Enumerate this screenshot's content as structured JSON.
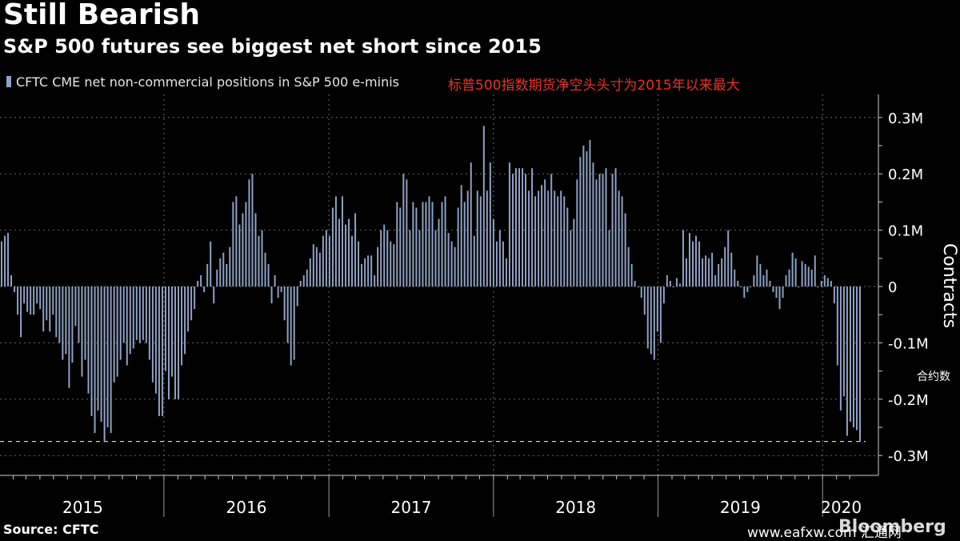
{
  "header": {
    "title": "Still Bearish",
    "subtitle": "S&P 500 futures see biggest net short since 2015"
  },
  "annotation_cn": "标普500指数期货净空头头寸为2015年以来最大",
  "footer": {
    "source": "Source: CFTC",
    "watermark": "www.eafxw.com 汇通网",
    "brand": "Bloomberg"
  },
  "colors": {
    "background": "#000000",
    "bars": "#8fa1c4",
    "grid": "#6b6b6b",
    "reference_line": "#e8d27a",
    "annotation": "#e8322b"
  },
  "chart_data": {
    "type": "bar",
    "legend": "CFTC CME net non-commercial positions in S&P 500 e-minis",
    "ylabel": "Contracts",
    "ylabel_cn": "合约数",
    "ylim": [
      -0.33,
      0.34
    ],
    "yticks": [
      0.3,
      0.2,
      0.1,
      0,
      -0.1,
      -0.2,
      -0.3
    ],
    "ytick_labels": [
      "0.3M",
      "0.2M",
      "0.1M",
      "0",
      "-0.1M",
      "-0.2M",
      "-0.3M"
    ],
    "year_labels": [
      "2015",
      "2016",
      "2017",
      "2018",
      "2019",
      "2020"
    ],
    "grid": true,
    "legend_position": "top-left",
    "reference_line": -0.275,
    "x_start": "2015-01-06",
    "x_end": "2020-03-24",
    "frequency": "weekly",
    "values": [
      0.08,
      0.09,
      0.095,
      0.02,
      -0.01,
      -0.05,
      -0.09,
      -0.03,
      -0.045,
      -0.05,
      -0.05,
      -0.03,
      -0.04,
      -0.08,
      -0.06,
      -0.08,
      -0.05,
      -0.09,
      -0.1,
      -0.13,
      -0.12,
      -0.18,
      -0.135,
      -0.07,
      -0.1,
      -0.16,
      -0.13,
      -0.19,
      -0.23,
      -0.26,
      -0.22,
      -0.24,
      -0.275,
      -0.25,
      -0.26,
      -0.17,
      -0.16,
      -0.13,
      -0.1,
      -0.14,
      -0.12,
      -0.11,
      -0.095,
      -0.1,
      -0.095,
      -0.1,
      -0.13,
      -0.17,
      -0.19,
      -0.23,
      -0.23,
      -0.15,
      -0.2,
      -0.16,
      -0.2,
      -0.2,
      -0.14,
      -0.12,
      -0.08,
      -0.06,
      -0.04,
      0.01,
      0.02,
      -0.01,
      0.04,
      0.08,
      -0.03,
      0.03,
      0.05,
      0.06,
      0.04,
      0.07,
      0.15,
      0.16,
      0.11,
      0.13,
      0.15,
      0.19,
      0.2,
      0.13,
      0.09,
      0.1,
      0.06,
      0.04,
      -0.03,
      0.02,
      -0.02,
      -0.01,
      -0.06,
      -0.1,
      -0.14,
      -0.13,
      -0.035,
      0.01,
      0.02,
      0.03,
      0.05,
      0.075,
      0.07,
      0.06,
      0.09,
      0.1,
      0.09,
      0.14,
      0.16,
      0.12,
      0.16,
      0.11,
      0.12,
      0.09,
      0.13,
      0.08,
      0.04,
      0.05,
      0.055,
      0.055,
      0.02,
      0.07,
      0.1,
      0.11,
      0.1,
      0.08,
      0.075,
      0.15,
      0.14,
      0.2,
      0.19,
      0.1,
      0.15,
      0.14,
      0.1,
      0.15,
      0.15,
      0.16,
      0.15,
      0.1,
      0.12,
      0.15,
      0.16,
      0.095,
      0.08,
      0.07,
      0.14,
      0.18,
      0.15,
      0.17,
      0.22,
      0.09,
      0.17,
      0.16,
      0.285,
      0.17,
      0.22,
      0.12,
      0.08,
      0.1,
      0.08,
      0.05,
      0.22,
      0.2,
      0.21,
      0.21,
      0.21,
      0.2,
      0.17,
      0.21,
      0.16,
      0.17,
      0.18,
      0.19,
      0.17,
      0.2,
      0.17,
      0.16,
      0.17,
      0.16,
      0.14,
      0.1,
      0.12,
      0.19,
      0.23,
      0.25,
      0.24,
      0.26,
      0.22,
      0.19,
      0.2,
      0.2,
      0.21,
      0.1,
      0.2,
      0.21,
      0.17,
      0.16,
      0.13,
      0.07,
      0.04,
      0.01,
      0.0,
      -0.02,
      -0.05,
      -0.11,
      -0.12,
      -0.13,
      -0.08,
      -0.1,
      -0.03,
      0.02,
      0.01,
      0.0,
      0.015,
      0.005,
      0.1,
      0.05,
      0.095,
      0.08,
      0.09,
      0.08,
      0.05,
      0.055,
      0.05,
      0.06,
      0.02,
      0.04,
      0.05,
      0.07,
      0.1,
      0.06,
      0.03,
      0.01,
      0.0,
      -0.02,
      -0.01,
      0.0,
      0.02,
      0.055,
      0.04,
      0.02,
      0.03,
      0.01,
      -0.01,
      -0.02,
      -0.04,
      -0.02,
      0.02,
      0.03,
      0.06,
      0.05,
      0.0,
      0.045,
      0.04,
      0.035,
      0.03,
      0.055,
      0.0,
      0.01,
      0.02,
      0.015,
      0.01,
      -0.03,
      -0.14,
      -0.22,
      -0.195,
      -0.265,
      -0.24,
      -0.25,
      -0.255,
      -0.275
    ]
  }
}
